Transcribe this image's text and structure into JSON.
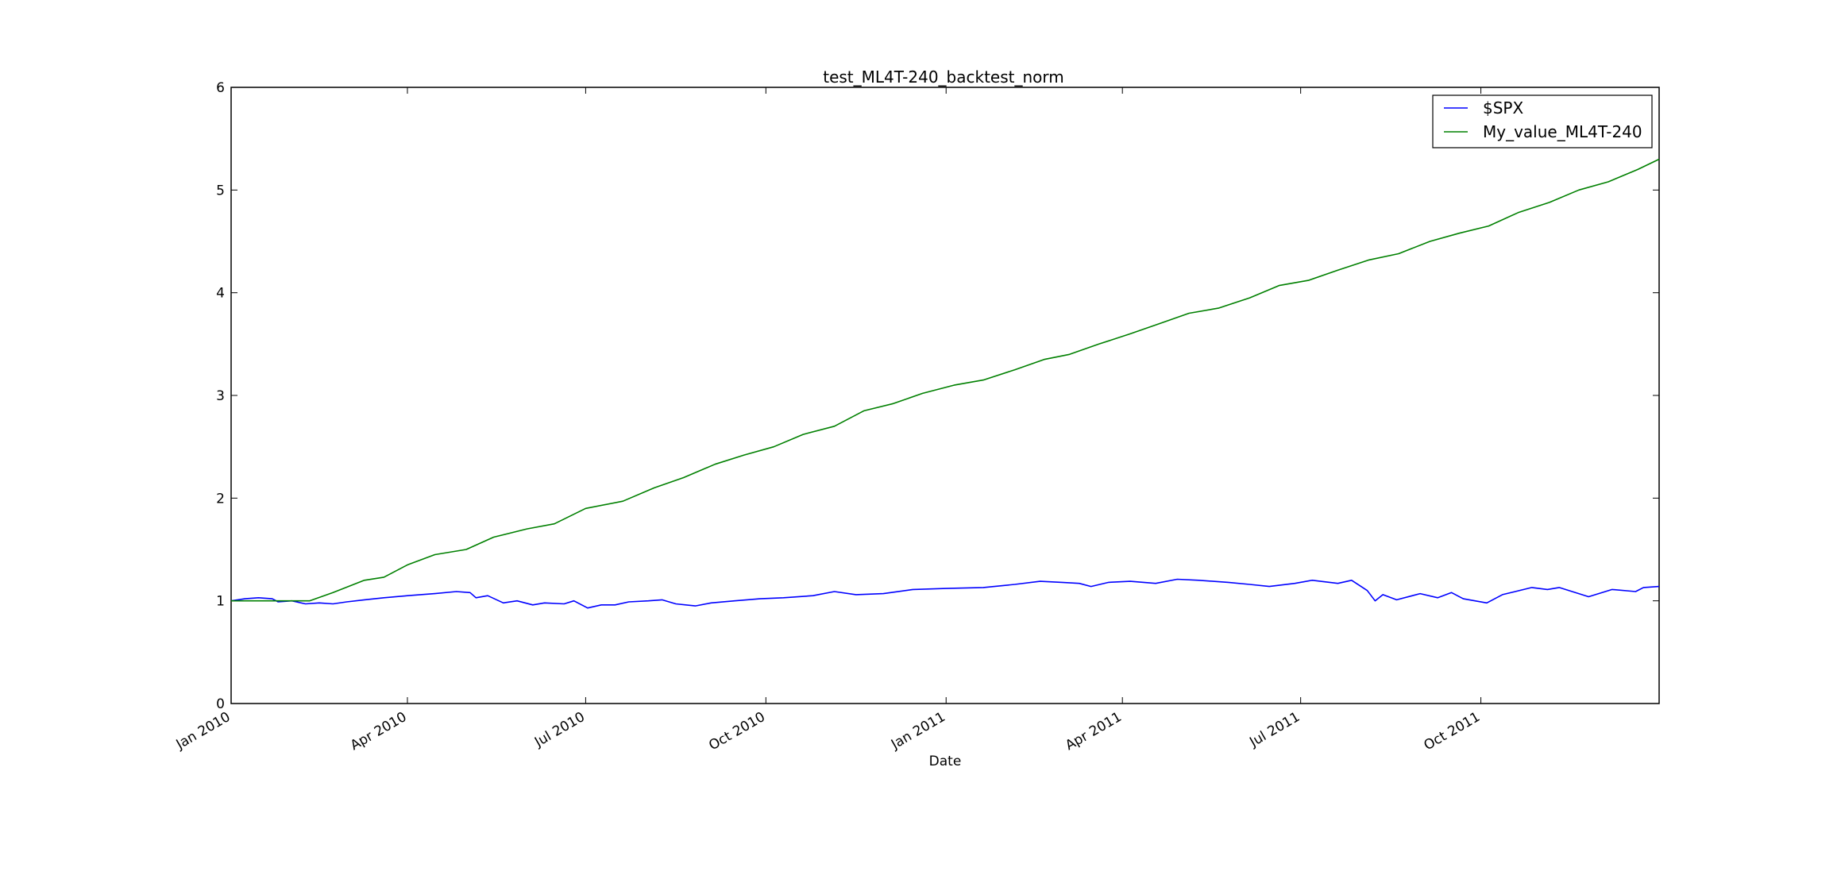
{
  "chart_data": {
    "type": "line",
    "title": "test_ML4T-240_backtest_norm",
    "xlabel": "Date",
    "ylabel": "",
    "xlim": [
      "2010-01-01",
      "2011-12-31"
    ],
    "ylim": [
      0,
      6
    ],
    "yticks": [
      0,
      1,
      2,
      3,
      4,
      5,
      6
    ],
    "xticks": [
      {
        "date": "2010-01-01",
        "label": "Jan 2010"
      },
      {
        "date": "2010-04-01",
        "label": "Apr 2010"
      },
      {
        "date": "2010-07-01",
        "label": "Jul 2010"
      },
      {
        "date": "2010-10-01",
        "label": "Oct 2010"
      },
      {
        "date": "2011-01-01",
        "label": "Jan 2011"
      },
      {
        "date": "2011-04-01",
        "label": "Apr 2011"
      },
      {
        "date": "2011-07-01",
        "label": "Jul 2011"
      },
      {
        "date": "2011-10-01",
        "label": "Oct 2011"
      }
    ],
    "grid": false,
    "legend_position": "top-right",
    "series": [
      {
        "name": "$SPX",
        "color": "#0000ff",
        "points": [
          [
            "2010-01-01",
            1.0
          ],
          [
            "2010-01-08",
            1.02
          ],
          [
            "2010-01-15",
            1.03
          ],
          [
            "2010-01-22",
            1.02
          ],
          [
            "2010-01-25",
            0.99
          ],
          [
            "2010-02-01",
            1.0
          ],
          [
            "2010-02-08",
            0.97
          ],
          [
            "2010-02-15",
            0.98
          ],
          [
            "2010-02-22",
            0.97
          ],
          [
            "2010-03-01",
            0.99
          ],
          [
            "2010-03-10",
            1.01
          ],
          [
            "2010-03-20",
            1.03
          ],
          [
            "2010-04-01",
            1.05
          ],
          [
            "2010-04-15",
            1.07
          ],
          [
            "2010-04-26",
            1.09
          ],
          [
            "2010-05-03",
            1.08
          ],
          [
            "2010-05-06",
            1.03
          ],
          [
            "2010-05-12",
            1.05
          ],
          [
            "2010-05-20",
            0.98
          ],
          [
            "2010-05-27",
            1.0
          ],
          [
            "2010-06-04",
            0.96
          ],
          [
            "2010-06-10",
            0.98
          ],
          [
            "2010-06-20",
            0.97
          ],
          [
            "2010-06-25",
            1.0
          ],
          [
            "2010-07-02",
            0.93
          ],
          [
            "2010-07-09",
            0.96
          ],
          [
            "2010-07-16",
            0.96
          ],
          [
            "2010-07-23",
            0.99
          ],
          [
            "2010-08-02",
            1.0
          ],
          [
            "2010-08-09",
            1.01
          ],
          [
            "2010-08-16",
            0.97
          ],
          [
            "2010-08-26",
            0.95
          ],
          [
            "2010-09-03",
            0.98
          ],
          [
            "2010-09-15",
            1.0
          ],
          [
            "2010-09-28",
            1.02
          ],
          [
            "2010-10-10",
            1.03
          ],
          [
            "2010-10-25",
            1.05
          ],
          [
            "2010-11-05",
            1.09
          ],
          [
            "2010-11-16",
            1.06
          ],
          [
            "2010-11-30",
            1.07
          ],
          [
            "2010-12-15",
            1.11
          ],
          [
            "2011-01-01",
            1.12
          ],
          [
            "2011-01-20",
            1.13
          ],
          [
            "2011-02-05",
            1.16
          ],
          [
            "2011-02-18",
            1.19
          ],
          [
            "2011-03-01",
            1.18
          ],
          [
            "2011-03-10",
            1.17
          ],
          [
            "2011-03-16",
            1.14
          ],
          [
            "2011-03-25",
            1.18
          ],
          [
            "2011-04-05",
            1.19
          ],
          [
            "2011-04-18",
            1.17
          ],
          [
            "2011-04-29",
            1.21
          ],
          [
            "2011-05-10",
            1.2
          ],
          [
            "2011-05-25",
            1.18
          ],
          [
            "2011-06-05",
            1.16
          ],
          [
            "2011-06-15",
            1.14
          ],
          [
            "2011-06-28",
            1.17
          ],
          [
            "2011-07-07",
            1.2
          ],
          [
            "2011-07-20",
            1.17
          ],
          [
            "2011-07-27",
            1.2
          ],
          [
            "2011-08-04",
            1.1
          ],
          [
            "2011-08-08",
            1.0
          ],
          [
            "2011-08-12",
            1.06
          ],
          [
            "2011-08-19",
            1.01
          ],
          [
            "2011-08-31",
            1.07
          ],
          [
            "2011-09-09",
            1.03
          ],
          [
            "2011-09-16",
            1.08
          ],
          [
            "2011-09-22",
            1.02
          ],
          [
            "2011-10-04",
            0.98
          ],
          [
            "2011-10-12",
            1.06
          ],
          [
            "2011-10-27",
            1.13
          ],
          [
            "2011-11-04",
            1.11
          ],
          [
            "2011-11-10",
            1.13
          ],
          [
            "2011-11-25",
            1.04
          ],
          [
            "2011-12-07",
            1.11
          ],
          [
            "2011-12-19",
            1.09
          ],
          [
            "2011-12-23",
            1.13
          ],
          [
            "2011-12-31",
            1.14
          ]
        ]
      },
      {
        "name": "My_value_ML4T-240",
        "color": "#008000",
        "points": [
          [
            "2010-01-01",
            1.0
          ],
          [
            "2010-01-20",
            1.0
          ],
          [
            "2010-02-10",
            1.0
          ],
          [
            "2010-02-22",
            1.08
          ],
          [
            "2010-03-10",
            1.2
          ],
          [
            "2010-03-20",
            1.23
          ],
          [
            "2010-04-01",
            1.35
          ],
          [
            "2010-04-15",
            1.45
          ],
          [
            "2010-05-01",
            1.5
          ],
          [
            "2010-05-15",
            1.62
          ],
          [
            "2010-06-01",
            1.7
          ],
          [
            "2010-06-15",
            1.75
          ],
          [
            "2010-07-01",
            1.9
          ],
          [
            "2010-07-20",
            1.97
          ],
          [
            "2010-08-05",
            2.1
          ],
          [
            "2010-08-20",
            2.2
          ],
          [
            "2010-09-05",
            2.33
          ],
          [
            "2010-09-20",
            2.42
          ],
          [
            "2010-10-05",
            2.5
          ],
          [
            "2010-10-20",
            2.62
          ],
          [
            "2010-11-05",
            2.7
          ],
          [
            "2010-11-20",
            2.85
          ],
          [
            "2010-12-05",
            2.92
          ],
          [
            "2010-12-20",
            3.02
          ],
          [
            "2011-01-05",
            3.1
          ],
          [
            "2011-01-20",
            3.15
          ],
          [
            "2011-02-05",
            3.25
          ],
          [
            "2011-02-20",
            3.35
          ],
          [
            "2011-03-05",
            3.4
          ],
          [
            "2011-03-20",
            3.5
          ],
          [
            "2011-04-05",
            3.6
          ],
          [
            "2011-04-20",
            3.7
          ],
          [
            "2011-05-05",
            3.8
          ],
          [
            "2011-05-20",
            3.85
          ],
          [
            "2011-06-05",
            3.95
          ],
          [
            "2011-06-20",
            4.07
          ],
          [
            "2011-07-05",
            4.12
          ],
          [
            "2011-07-20",
            4.22
          ],
          [
            "2011-08-05",
            4.32
          ],
          [
            "2011-08-20",
            4.38
          ],
          [
            "2011-09-05",
            4.5
          ],
          [
            "2011-09-20",
            4.58
          ],
          [
            "2011-10-05",
            4.65
          ],
          [
            "2011-10-20",
            4.78
          ],
          [
            "2011-11-05",
            4.88
          ],
          [
            "2011-11-20",
            5.0
          ],
          [
            "2011-12-05",
            5.08
          ],
          [
            "2011-12-20",
            5.2
          ],
          [
            "2011-12-31",
            5.3
          ]
        ]
      }
    ]
  }
}
